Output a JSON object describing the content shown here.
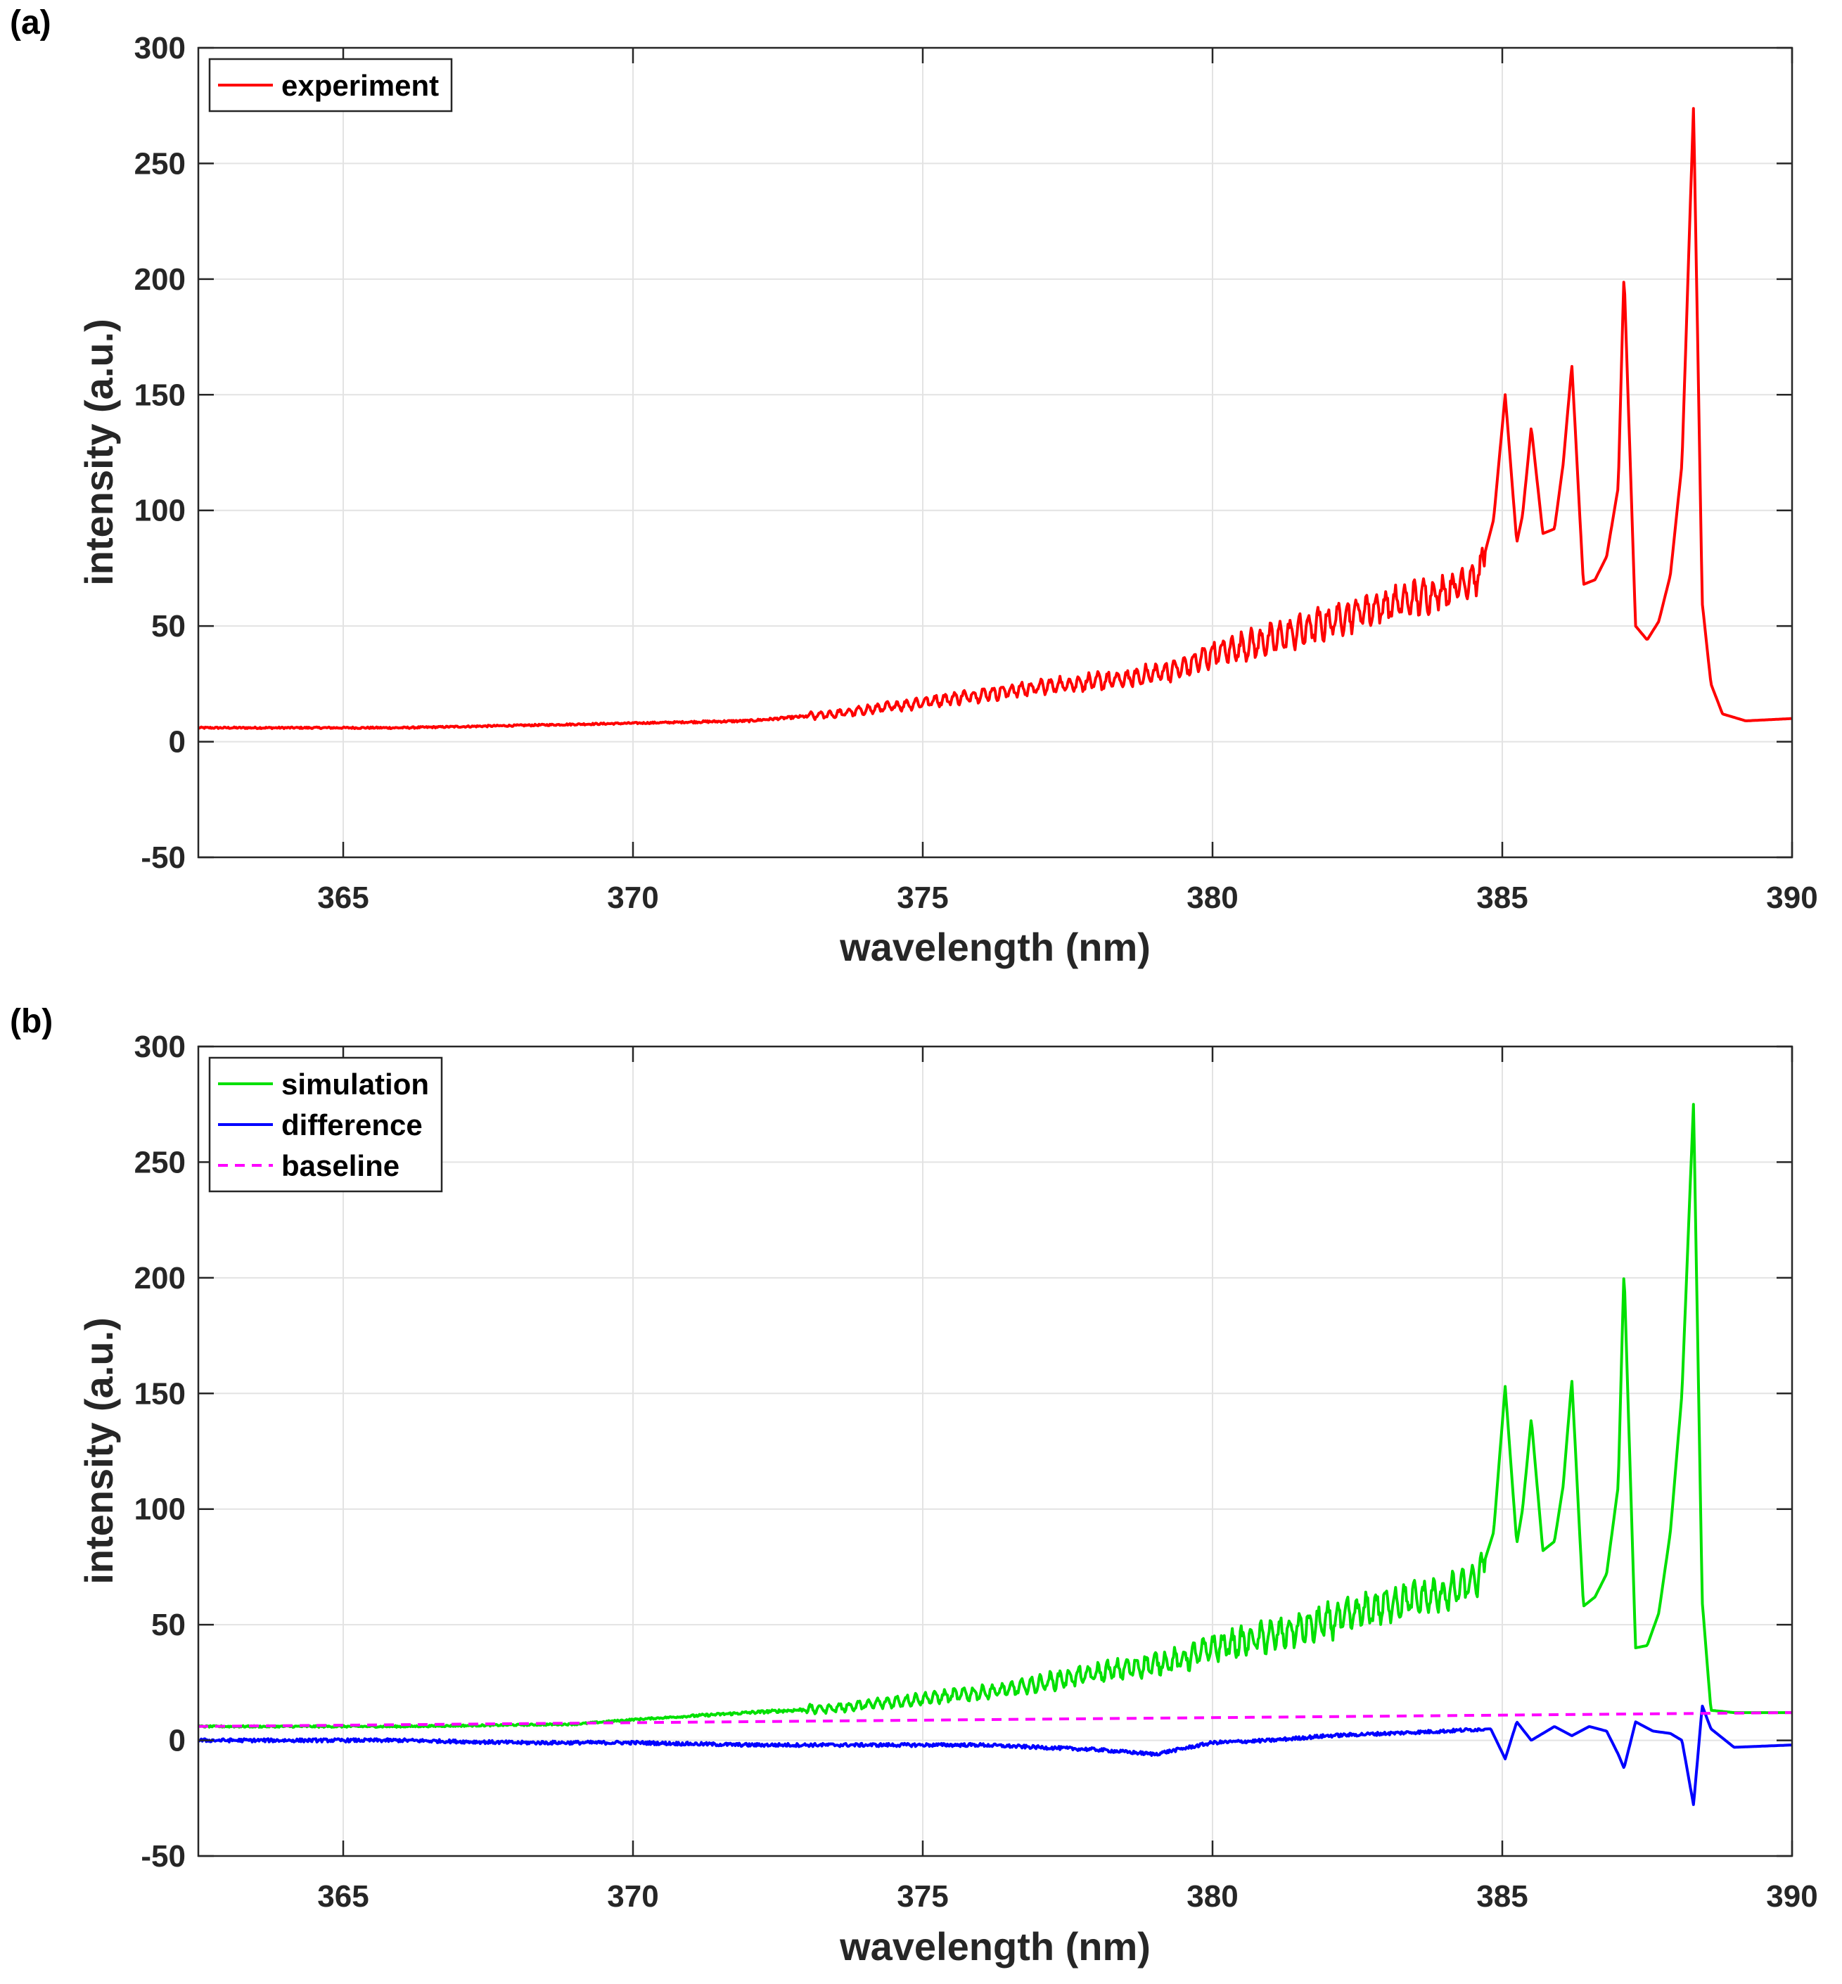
{
  "chart_data": [
    {
      "type": "line",
      "panel_label": "(a)",
      "title": "",
      "xlabel": "wavelength (nm)",
      "ylabel": "intensity (a.u.)",
      "xlim": [
        362.5,
        390
      ],
      "ylim": [
        -50,
        300
      ],
      "xticks": [
        365,
        370,
        375,
        380,
        385,
        390
      ],
      "yticks": [
        -50,
        0,
        50,
        100,
        150,
        200,
        250,
        300
      ],
      "grid": true,
      "legend_position": "top-left",
      "series": [
        {
          "name": "experiment",
          "color": "#ff0000",
          "style": "solid",
          "x": [
            362.5,
            364,
            366,
            368,
            370,
            372,
            373.5,
            375,
            376.5,
            377.5,
            378.5,
            379.5,
            380,
            381,
            381.8,
            382.5,
            383.2,
            384,
            384.6,
            384.85,
            385.05,
            385.25,
            385.35,
            385.5,
            385.7,
            385.9,
            386.05,
            386.2,
            386.4,
            386.6,
            386.8,
            387.0,
            387.1,
            387.3,
            387.5,
            387.7,
            387.9,
            388.1,
            388.3,
            388.45,
            388.6,
            388.8,
            389.2,
            390
          ],
          "y": [
            6,
            6,
            6,
            7,
            8,
            9,
            12,
            17,
            22,
            25,
            27,
            32,
            38,
            44,
            50,
            56,
            60,
            65,
            72,
            96,
            150,
            86,
            98,
            136,
            90,
            92,
            120,
            163,
            68,
            70,
            80,
            110,
            203,
            50,
            44,
            52,
            72,
            120,
            275,
            60,
            25,
            12,
            9,
            10
          ]
        }
      ]
    },
    {
      "type": "line",
      "panel_label": "(b)",
      "title": "",
      "xlabel": "wavelength (nm)",
      "ylabel": "intensity (a.u.)",
      "xlim": [
        362.5,
        390
      ],
      "ylim": [
        -50,
        300
      ],
      "xticks": [
        365,
        370,
        375,
        380,
        385,
        390
      ],
      "yticks": [
        -50,
        0,
        50,
        100,
        150,
        200,
        250,
        300
      ],
      "grid": true,
      "legend_position": "top-left",
      "series": [
        {
          "name": "simulation",
          "color": "#00e000",
          "style": "solid",
          "x": [
            362.5,
            366,
            369,
            370,
            372,
            373.5,
            375,
            376.5,
            377.5,
            378.5,
            379.5,
            380,
            381,
            381.8,
            382.5,
            383.2,
            384,
            384.6,
            384.85,
            385.05,
            385.25,
            385.35,
            385.5,
            385.7,
            385.9,
            386.05,
            386.2,
            386.4,
            386.6,
            386.8,
            387.0,
            387.1,
            387.3,
            387.5,
            387.7,
            387.9,
            388.1,
            388.3,
            388.45,
            388.6,
            389,
            390
          ],
          "y": [
            6,
            6,
            7,
            9,
            12,
            14,
            18,
            22,
            27,
            31,
            35,
            40,
            45,
            50,
            55,
            60,
            63,
            70,
            90,
            153,
            85,
            100,
            139,
            82,
            86,
            110,
            156,
            58,
            62,
            72,
            110,
            204,
            40,
            41,
            55,
            90,
            150,
            276,
            60,
            13,
            12,
            12
          ]
        },
        {
          "name": "difference",
          "color": "#0000ff",
          "style": "solid",
          "x": [
            362.5,
            364,
            366,
            368,
            370,
            372,
            374,
            376,
            378,
            379,
            380,
            381,
            382,
            383,
            384,
            384.8,
            385.05,
            385.25,
            385.5,
            385.9,
            386.2,
            386.5,
            386.8,
            387.0,
            387.1,
            387.3,
            387.6,
            387.9,
            388.1,
            388.3,
            388.45,
            388.6,
            389,
            390
          ],
          "y": [
            0,
            0,
            0,
            -1,
            -1,
            -2,
            -2,
            -2,
            -4,
            -6,
            -1,
            0,
            2,
            3,
            4,
            5,
            -8,
            8,
            0,
            6,
            2,
            6,
            4,
            -6,
            -12,
            8,
            4,
            3,
            0,
            -28,
            15,
            5,
            -3,
            -2
          ]
        },
        {
          "name": "baseline",
          "color": "#ff00ff",
          "style": "dashed",
          "x": [
            362.5,
            390
          ],
          "y": [
            6,
            12
          ]
        }
      ]
    }
  ]
}
